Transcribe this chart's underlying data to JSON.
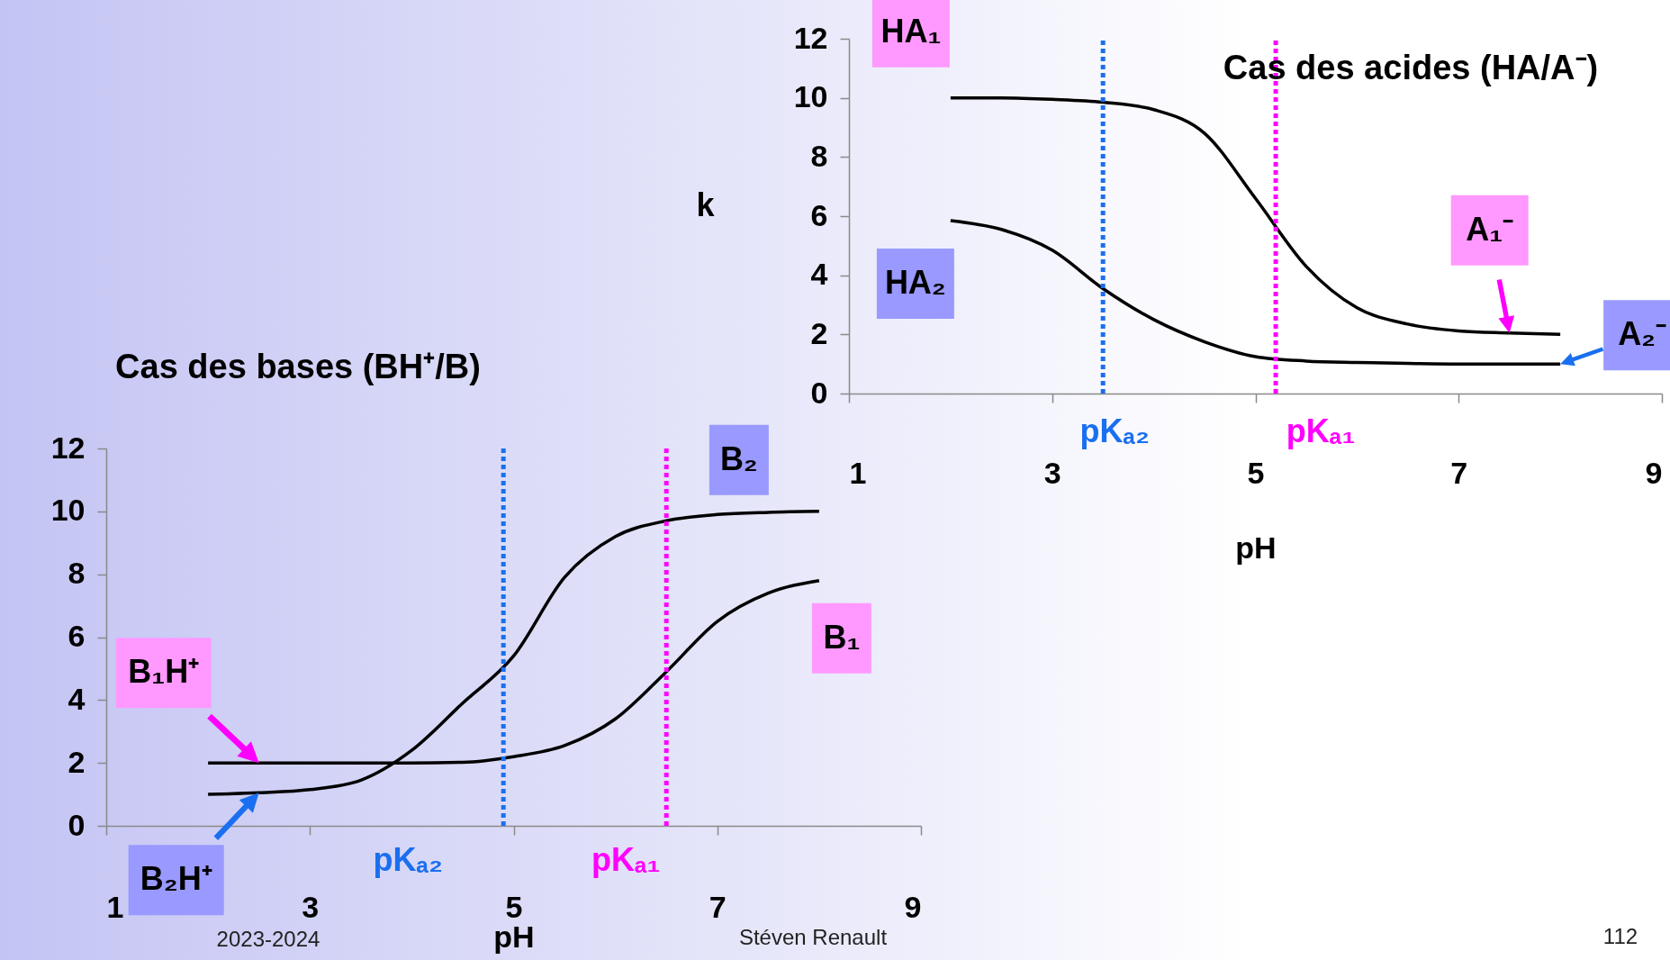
{
  "chart_data": [
    {
      "type": "line",
      "title": "Cas des acides (HA/A⁻)",
      "xlabel": "pH",
      "ylabel": "k",
      "x": [
        2,
        2.5,
        3,
        3.5,
        4,
        4.5,
        5,
        5.5,
        6,
        6.5,
        7,
        7.5,
        8
      ],
      "series": [
        {
          "color": "#000000",
          "values": [
            10,
            10,
            9.95,
            9.85,
            9.6,
            8.8,
            6.6,
            4.3,
            2.9,
            2.35,
            2.12,
            2.05,
            2.0
          ]
        },
        {
          "color": "#000000",
          "values": [
            5.85,
            5.55,
            4.85,
            3.55,
            2.5,
            1.75,
            1.25,
            1.1,
            1.05,
            1.02,
            1.0,
            1.0,
            1.0
          ]
        }
      ],
      "xlim": [
        1,
        9
      ],
      "xticks": [
        1,
        3,
        5,
        7,
        9
      ],
      "ylim": [
        0,
        12
      ],
      "yticks": [
        0,
        2,
        4,
        6,
        8,
        10,
        12
      ],
      "ref_lines": [
        {
          "axis": "x",
          "value": 3.5,
          "label": "pKₐ₂",
          "color": "#1a6ff0",
          "line_style": "dotted"
        },
        {
          "axis": "x",
          "value": 5.2,
          "label": "pKₐ₁",
          "color": "#ff00ff",
          "line_style": "dotted"
        }
      ],
      "annotations": [
        {
          "text": "HA₁",
          "x": 2,
          "y": 10
        },
        {
          "text": "HA₂",
          "x": 2,
          "y": 5.85
        },
        {
          "text": "A₁⁻",
          "x": 7.5,
          "y": 2.05
        },
        {
          "text": "A₂⁻",
          "x": 8,
          "y": 1.0
        },
        "112"
      ]
    },
    {
      "type": "line",
      "title": "Cas des bases (BH⁺/B)",
      "xlabel": "pH",
      "x": [
        2,
        2.5,
        3,
        3.5,
        4,
        4.5,
        5,
        5.5,
        6,
        6.5,
        7,
        7.5,
        8
      ],
      "series": [
        {
          "color": "#000000",
          "values": [
            1.0,
            1.05,
            1.15,
            1.45,
            2.4,
            3.9,
            5.4,
            7.9,
            9.2,
            9.7,
            9.9,
            9.97,
            10
          ]
        },
        {
          "color": "#000000",
          "values": [
            2.0,
            2.0,
            2.0,
            2.0,
            2.0,
            2.02,
            2.2,
            2.55,
            3.4,
            4.9,
            6.5,
            7.4,
            7.8
          ]
        }
      ],
      "xlim": [
        1,
        9
      ],
      "xticks": [
        1,
        3,
        5,
        7,
        9
      ],
      "ylim": [
        0,
        12
      ],
      "yticks": [
        0,
        2,
        4,
        6,
        8,
        10,
        12
      ],
      "ref_lines": [
        {
          "axis": "x",
          "value": 4.9,
          "label": "pKₐ₂",
          "color": "#1a6ff0",
          "line_style": "dotted"
        },
        {
          "axis": "x",
          "value": 6.5,
          "label": "pKₐ₁",
          "color": "#ff00ff",
          "line_style": "dotted"
        }
      ],
      "annotations": [
        {
          "text": "B₂",
          "x": 8,
          "y": 10
        },
        {
          "text": "B₁",
          "x": 8,
          "y": 7.8
        },
        {
          "text": "B₁H⁺",
          "x": 2.5,
          "y": 2.0
        },
        {
          "text": "B₂H⁺",
          "x": 2.5,
          "y": 1.05
        },
        "2023-2024",
        "Stéven Renault"
      ]
    }
  ]
}
